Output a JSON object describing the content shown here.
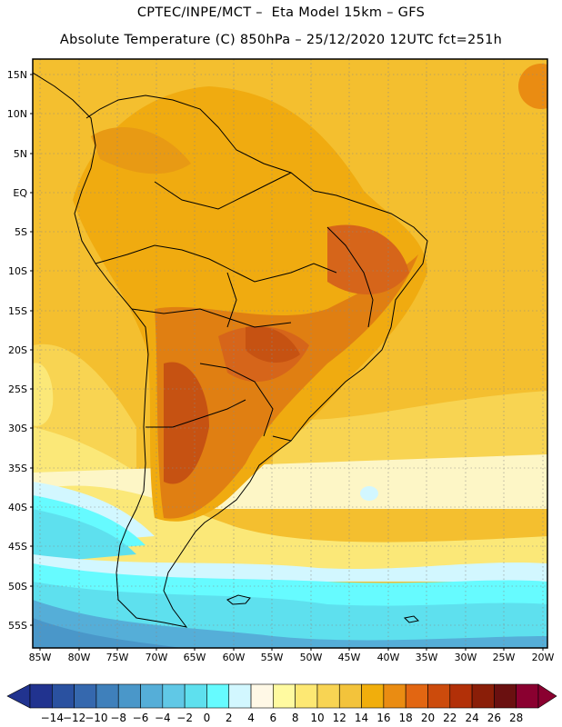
{
  "header": {
    "line1": "CPTEC/INPE/MCT –  Eta Model 15km – GFS",
    "line2": "Absolute Temperature (C) 850hPa – 25/12/2020 12UTC fct=251h"
  },
  "axes": {
    "lat_labels": [
      "15N",
      "10N",
      "5N",
      "EQ",
      "5S",
      "10S",
      "15S",
      "20S",
      "25S",
      "30S",
      "35S",
      "40S",
      "45S",
      "50S",
      "55S"
    ],
    "lon_labels": [
      "85W",
      "80W",
      "75W",
      "70W",
      "65W",
      "60W",
      "55W",
      "50W",
      "45W",
      "40W",
      "35W",
      "30W",
      "25W",
      "20W"
    ]
  },
  "colorbar": {
    "labels": [
      "-14",
      "-12",
      "-10",
      "-8",
      "-6",
      "-4",
      "-2",
      "0",
      "2",
      "4",
      "6",
      "8",
      "10",
      "12",
      "14",
      "16",
      "18",
      "20",
      "22",
      "24",
      "26",
      "28"
    ],
    "colors": [
      "#21338f",
      "#2a51a0",
      "#3568ae",
      "#3f80bb",
      "#4a97c9",
      "#55aed8",
      "#60c8e6",
      "#5ee0ee",
      "#66fbff",
      "#d2f7ff",
      "#fff8e6",
      "#fffaa0",
      "#fde873",
      "#f8d453",
      "#f3c33b",
      "#f1ae0c",
      "#ea8c12",
      "#e26612",
      "#cc4b0c",
      "#b23008",
      "#8a1e08",
      "#6a1010",
      "#8a0030"
    ],
    "under_color": "#21338f",
    "over_color": "#8a0030"
  },
  "palette": {
    "ocean_warm": "#f6c43a",
    "ocean_mid": "#f8d452",
    "ocean_cool": "#fbe878",
    "pale": "#fdf6c6",
    "cold1": "#d2f7ff",
    "cold2": "#66fbff",
    "cold3": "#5ee0ee",
    "cold4": "#55aed8",
    "land_warm": "#f0ab10",
    "land_hot": "#e07f12",
    "land_hotter": "#d6651a",
    "land_hottest": "#c65212"
  }
}
